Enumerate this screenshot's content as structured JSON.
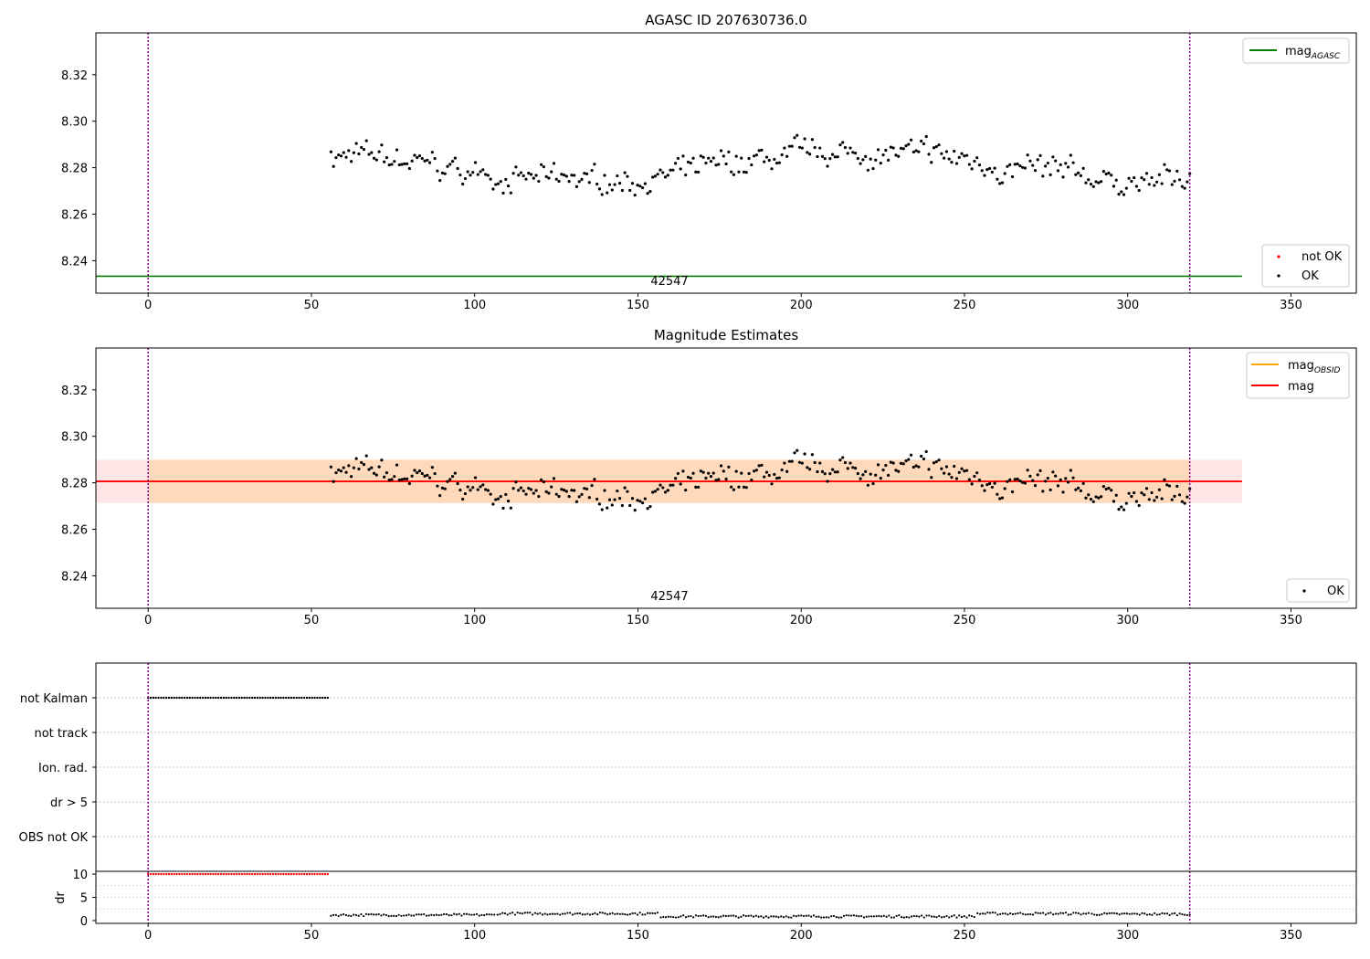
{
  "chart_data": [
    {
      "type": "scatter",
      "title": "AGASC ID 207630736.0",
      "xlim": [
        -16,
        370
      ],
      "ylim": [
        8.226,
        8.338
      ],
      "x_ticks": [
        0,
        50,
        100,
        150,
        200,
        250,
        300,
        350
      ],
      "y_ticks": [
        8.24,
        8.26,
        8.28,
        8.3,
        8.32
      ],
      "y_tick_labels": [
        "8.24",
        "8.26",
        "8.28",
        "8.30",
        "8.32"
      ],
      "vlines": [
        0,
        319
      ],
      "vline_color": "#800080",
      "hline": {
        "name": "mag_AGASC",
        "value": 8.2333,
        "x_range": [
          -16,
          335
        ],
        "color": "#008000"
      },
      "annotation": {
        "text": "42547",
        "x": 159.5
      },
      "legend_top": [
        {
          "label": "mag",
          "subscript": "AGASC",
          "color": "#008000"
        }
      ],
      "legend_bottom": [
        {
          "label": "not OK",
          "color": "#ff0000"
        },
        {
          "label": "OK",
          "color": "#000000"
        }
      ],
      "series": [
        {
          "name": "OK",
          "color": "#000000",
          "x_start": 56,
          "x_end": 319,
          "n": 340,
          "center": 8.28,
          "amplitude": 0.006
        }
      ]
    },
    {
      "type": "scatter",
      "title": "Magnitude Estimates",
      "xlim": [
        -16,
        370
      ],
      "ylim": [
        8.226,
        8.338
      ],
      "x_ticks": [
        0,
        50,
        100,
        150,
        200,
        250,
        300,
        350
      ],
      "y_ticks": [
        8.24,
        8.26,
        8.28,
        8.3,
        8.32
      ],
      "y_tick_labels": [
        "8.24",
        "8.26",
        "8.28",
        "8.30",
        "8.32"
      ],
      "vlines": [
        0,
        319
      ],
      "vline_color": "#800080",
      "mag_obsid": {
        "value": 8.2806,
        "band": [
          8.2713,
          8.2899
        ],
        "color": "#ffa500"
      },
      "mag": {
        "value": 8.2806,
        "band": [
          8.2713,
          8.2899
        ],
        "color": "#ff0000"
      },
      "band_x_range": [
        -16,
        335
      ],
      "annotation": {
        "text": "42547",
        "x": 159.5
      },
      "legend_top": [
        {
          "label": "mag",
          "subscript": "OBSID",
          "color": "#ffa500"
        },
        {
          "label": "mag",
          "subscript": "",
          "color": "#ff0000"
        }
      ],
      "legend_bottom": [
        {
          "label": "OK",
          "color": "#000000"
        }
      ],
      "series": [
        {
          "name": "OK",
          "color": "#000000",
          "x_start": 56,
          "x_end": 319,
          "n": 340,
          "center": 8.28,
          "amplitude": 0.006
        }
      ]
    },
    {
      "type": "scatter",
      "title": "",
      "xlim": [
        -16,
        370
      ],
      "flag_labels": [
        "not Kalman",
        "not track",
        "Ion. rad.",
        "dr > 5",
        "OBS not OK"
      ],
      "flag_series": [
        {
          "label": "not Kalman",
          "x_start": 0,
          "x_end": 55,
          "n": 70
        }
      ],
      "vlines": [
        0,
        319
      ]
    },
    {
      "type": "scatter",
      "title": "",
      "ylabel": "dr",
      "xlim": [
        -16,
        370
      ],
      "ylim": [
        -0.6,
        10.6
      ],
      "x_ticks": [
        0,
        50,
        100,
        150,
        200,
        250,
        300,
        350
      ],
      "y_ticks": [
        0,
        5,
        10
      ],
      "y_tick_labels": [
        "0",
        "5",
        "10"
      ],
      "vlines": [
        0,
        319
      ],
      "series": [
        {
          "name": "clipped",
          "color": "#ff0000",
          "x_start": 0,
          "x_end": 55,
          "n": 70,
          "value": 10
        },
        {
          "name": "dr",
          "color": "#000000",
          "segments": [
            [
              56,
              106,
              1.2
            ],
            [
              107,
              156,
              1.5
            ],
            [
              157,
              253,
              0.9
            ],
            [
              254,
              288,
              1.5
            ],
            [
              289,
              319,
              1.4
            ]
          ]
        }
      ]
    }
  ]
}
